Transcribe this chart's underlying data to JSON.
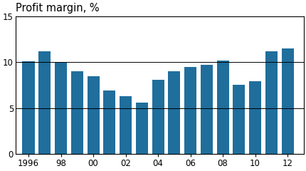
{
  "title": "Profit margin, %",
  "bar_years": [
    1996,
    1997,
    1998,
    1999,
    2000,
    2001,
    2002,
    2003,
    2004,
    2005,
    2006,
    2007,
    2008,
    2009,
    2010,
    2011,
    2012
  ],
  "bar_values": [
    10.1,
    11.2,
    10.0,
    9.0,
    8.5,
    6.9,
    6.3,
    5.6,
    8.1,
    9.0,
    9.5,
    9.7,
    10.2,
    7.5,
    7.9,
    11.2,
    11.5
  ],
  "bar_color": "#1f6e9c",
  "ylim": [
    0,
    15
  ],
  "yticks": [
    0,
    5,
    10,
    15
  ],
  "xtick_labels": [
    "1996",
    "98",
    "00",
    "02",
    "04",
    "06",
    "08",
    "10",
    "12"
  ],
  "xtick_positions": [
    1996,
    1998,
    2000,
    2002,
    2004,
    2006,
    2008,
    2010,
    2012
  ],
  "xlim": [
    1995.2,
    2013.0
  ],
  "hlines": [
    5,
    10
  ],
  "background_color": "#ffffff",
  "title_fontsize": 10.5,
  "tick_fontsize": 8.5
}
